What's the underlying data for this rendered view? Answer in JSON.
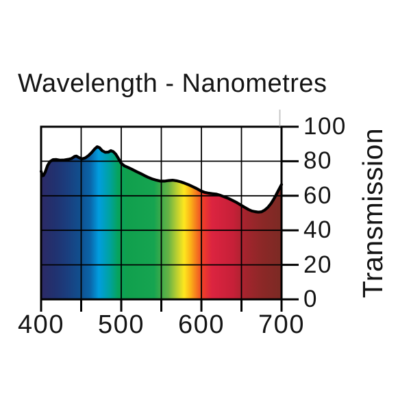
{
  "title": "Wavelength - Nanometres",
  "x_axis": {
    "tick_labels": [
      "400",
      "500",
      "600",
      "700"
    ]
  },
  "y_axis": {
    "label": "Transmission",
    "tick_labels": [
      "100",
      "80",
      "60",
      "40",
      "20",
      "0"
    ]
  },
  "chart_data": {
    "type": "area",
    "title": "Wavelength - Nanometres",
    "xlabel": "Wavelength - Nanometres",
    "ylabel": "Transmission",
    "xlim": [
      400,
      700
    ],
    "ylim": [
      0,
      100
    ],
    "x_ticks": [
      400,
      450,
      500,
      550,
      600,
      650,
      700
    ],
    "x_labeled_ticks": [
      400,
      500,
      600,
      700
    ],
    "y_ticks": [
      0,
      20,
      40,
      60,
      80,
      100
    ],
    "grid": true,
    "legend": false,
    "grid_color": "#000000",
    "curve_color": "#000000",
    "series": [
      {
        "name": "Transmission (%)",
        "x": [
          400,
          401.5,
          403,
          405,
          408,
          411,
          415,
          419,
          424,
          429,
          434,
          438,
          442,
          444,
          447,
          451,
          455,
          459,
          463,
          467,
          470,
          473,
          476,
          480,
          484,
          487,
          490,
          493,
          496,
          500,
          504,
          509,
          514,
          519,
          524,
          529,
          534,
          539,
          544,
          549,
          554,
          559,
          564,
          569,
          574,
          579,
          584,
          589,
          594,
          599,
          604,
          609,
          614,
          619,
          624,
          629,
          634,
          639,
          644,
          649,
          654,
          659,
          663,
          667,
          671,
          675,
          679,
          683,
          687,
          690,
          693,
          696,
          698,
          700
        ],
        "y": [
          74.2,
          71.6,
          71.8,
          73.5,
          77.5,
          79.8,
          80.9,
          81,
          80.6,
          80.7,
          81.1,
          81.6,
          82.8,
          83,
          82.2,
          81.4,
          81.9,
          83.2,
          85,
          87.2,
          88.4,
          87.8,
          86.2,
          85.2,
          85.3,
          86.1,
          85.6,
          84.2,
          82,
          78.8,
          77.3,
          76.3,
          75.2,
          74,
          72.9,
          71.7,
          70.6,
          69.7,
          69,
          68.5,
          68.5,
          68.8,
          69,
          68.7,
          68.1,
          67.3,
          66.4,
          65.3,
          64.2,
          62.9,
          62,
          61.5,
          61.2,
          60.9,
          60.2,
          59.3,
          58.4,
          57.3,
          56.1,
          54.7,
          53.3,
          52,
          51.2,
          50.8,
          50.5,
          50.7,
          51.7,
          53.3,
          55.6,
          57.8,
          60.3,
          63,
          64.8,
          66.5
        ]
      }
    ],
    "fill": "visible-spectrum-gradient",
    "spectrum_gradient": [
      {
        "offset": 0.0,
        "color": "#2d2a66"
      },
      {
        "offset": 0.055,
        "color": "#21316f"
      },
      {
        "offset": 0.105,
        "color": "#1b3d7d"
      },
      {
        "offset": 0.165,
        "color": "#10508f"
      },
      {
        "offset": 0.205,
        "color": "#0a66aa"
      },
      {
        "offset": 0.24,
        "color": "#019ddf"
      },
      {
        "offset": 0.285,
        "color": "#00a2a0"
      },
      {
        "offset": 0.32,
        "color": "#06a35d"
      },
      {
        "offset": 0.355,
        "color": "#10a04e"
      },
      {
        "offset": 0.47,
        "color": "#16a450"
      },
      {
        "offset": 0.53,
        "color": "#67b345"
      },
      {
        "offset": 0.568,
        "color": "#c3d22f"
      },
      {
        "offset": 0.595,
        "color": "#fee71e"
      },
      {
        "offset": 0.622,
        "color": "#fbb118"
      },
      {
        "offset": 0.648,
        "color": "#f4741f"
      },
      {
        "offset": 0.675,
        "color": "#ee3c2a"
      },
      {
        "offset": 0.71,
        "color": "#dc2440"
      },
      {
        "offset": 0.8,
        "color": "#c62038"
      },
      {
        "offset": 0.852,
        "color": "#a3242d"
      },
      {
        "offset": 0.918,
        "color": "#8c2827"
      },
      {
        "offset": 1.0,
        "color": "#7b2a24"
      }
    ]
  }
}
